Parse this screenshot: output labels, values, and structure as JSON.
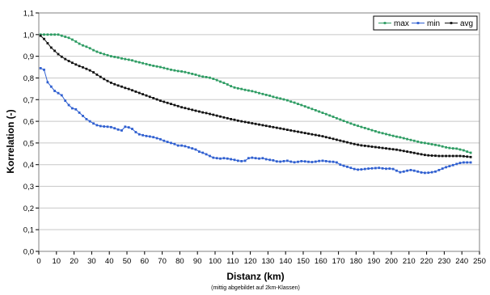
{
  "chart_data": {
    "type": "line",
    "title": "",
    "xlabel": "Distanz (km)",
    "xlabel_note": "(mittig abgebildet auf 2km-Klassen)",
    "ylabel": "Korrelation (-)",
    "xlim": [
      0,
      250
    ],
    "ylim": [
      0,
      1.1
    ],
    "x_ticks": [
      "0",
      "10",
      "20",
      "30",
      "40",
      "50",
      "60",
      "70",
      "80",
      "90",
      "100",
      "110",
      "120",
      "130",
      "140",
      "150",
      "160",
      "170",
      "180",
      "190",
      "200",
      "210",
      "220",
      "230",
      "240",
      "250"
    ],
    "y_ticks": [
      "0,0",
      "0,1",
      "0,2",
      "0,3",
      "0,4",
      "0,5",
      "0,6",
      "0,7",
      "0,8",
      "0,9",
      "1,0",
      "1,1"
    ],
    "grid": "horizontal",
    "legend_position": "top-right",
    "x": [
      1,
      3,
      5,
      7,
      9,
      11,
      13,
      15,
      17,
      19,
      21,
      23,
      25,
      27,
      29,
      31,
      33,
      35,
      37,
      39,
      41,
      43,
      45,
      47,
      49,
      51,
      53,
      55,
      57,
      59,
      61,
      63,
      65,
      67,
      69,
      71,
      73,
      75,
      77,
      79,
      81,
      83,
      85,
      87,
      89,
      91,
      93,
      95,
      97,
      99,
      101,
      103,
      105,
      107,
      109,
      111,
      113,
      115,
      117,
      119,
      121,
      123,
      125,
      127,
      129,
      131,
      133,
      135,
      137,
      139,
      141,
      143,
      145,
      147,
      149,
      151,
      153,
      155,
      157,
      159,
      161,
      163,
      165,
      167,
      169,
      171,
      173,
      175,
      177,
      179,
      181,
      183,
      185,
      187,
      189,
      191,
      193,
      195,
      197,
      199,
      201,
      203,
      205,
      207,
      209,
      211,
      213,
      215,
      217,
      219,
      221,
      223,
      225,
      227,
      229,
      231,
      233,
      235,
      237,
      239,
      241,
      243,
      245
    ],
    "series": [
      {
        "name": "max",
        "color": "#2e9c63",
        "values": [
          1.0,
          1.0,
          1.0,
          1.0,
          1.0,
          1.0,
          0.995,
          0.99,
          0.985,
          0.977,
          0.968,
          0.958,
          0.95,
          0.944,
          0.937,
          0.928,
          0.921,
          0.915,
          0.91,
          0.905,
          0.9,
          0.897,
          0.894,
          0.89,
          0.887,
          0.884,
          0.881,
          0.876,
          0.872,
          0.868,
          0.864,
          0.86,
          0.856,
          0.853,
          0.85,
          0.846,
          0.842,
          0.838,
          0.835,
          0.832,
          0.83,
          0.827,
          0.823,
          0.819,
          0.815,
          0.81,
          0.806,
          0.804,
          0.801,
          0.796,
          0.79,
          0.783,
          0.777,
          0.77,
          0.762,
          0.756,
          0.752,
          0.749,
          0.745,
          0.742,
          0.739,
          0.735,
          0.73,
          0.726,
          0.722,
          0.718,
          0.713,
          0.709,
          0.705,
          0.701,
          0.697,
          0.691,
          0.686,
          0.68,
          0.675,
          0.669,
          0.663,
          0.657,
          0.651,
          0.645,
          0.639,
          0.633,
          0.627,
          0.621,
          0.614,
          0.608,
          0.602,
          0.596,
          0.59,
          0.584,
          0.579,
          0.574,
          0.569,
          0.564,
          0.559,
          0.554,
          0.549,
          0.545,
          0.541,
          0.537,
          0.533,
          0.529,
          0.526,
          0.522,
          0.518,
          0.514,
          0.51,
          0.506,
          0.502,
          0.5,
          0.497,
          0.494,
          0.491,
          0.488,
          0.484,
          0.48,
          0.477,
          0.475,
          0.474,
          0.47,
          0.466,
          0.46,
          0.455
        ]
      },
      {
        "name": "min",
        "color": "#2f5fd0",
        "values": [
          0.845,
          0.838,
          0.78,
          0.76,
          0.74,
          0.73,
          0.72,
          0.695,
          0.675,
          0.66,
          0.655,
          0.64,
          0.625,
          0.61,
          0.6,
          0.59,
          0.582,
          0.578,
          0.576,
          0.575,
          0.573,
          0.568,
          0.562,
          0.558,
          0.575,
          0.572,
          0.565,
          0.55,
          0.54,
          0.536,
          0.532,
          0.53,
          0.527,
          0.522,
          0.517,
          0.51,
          0.505,
          0.5,
          0.495,
          0.488,
          0.488,
          0.485,
          0.48,
          0.475,
          0.47,
          0.46,
          0.455,
          0.448,
          0.44,
          0.432,
          0.43,
          0.428,
          0.43,
          0.428,
          0.425,
          0.422,
          0.418,
          0.416,
          0.418,
          0.43,
          0.432,
          0.43,
          0.428,
          0.43,
          0.425,
          0.422,
          0.42,
          0.415,
          0.414,
          0.416,
          0.418,
          0.414,
          0.411,
          0.413,
          0.416,
          0.415,
          0.413,
          0.412,
          0.414,
          0.417,
          0.418,
          0.416,
          0.414,
          0.413,
          0.41,
          0.4,
          0.395,
          0.39,
          0.385,
          0.38,
          0.377,
          0.378,
          0.38,
          0.382,
          0.383,
          0.384,
          0.385,
          0.383,
          0.381,
          0.382,
          0.38,
          0.372,
          0.365,
          0.368,
          0.372,
          0.375,
          0.372,
          0.368,
          0.364,
          0.362,
          0.363,
          0.365,
          0.368,
          0.375,
          0.382,
          0.388,
          0.393,
          0.398,
          0.403,
          0.408,
          0.41,
          0.41,
          0.41
        ]
      },
      {
        "name": "avg",
        "color": "#111111",
        "values": [
          0.995,
          0.98,
          0.96,
          0.94,
          0.925,
          0.91,
          0.898,
          0.887,
          0.878,
          0.87,
          0.862,
          0.855,
          0.849,
          0.842,
          0.835,
          0.826,
          0.815,
          0.805,
          0.795,
          0.786,
          0.778,
          0.771,
          0.765,
          0.76,
          0.754,
          0.749,
          0.743,
          0.737,
          0.731,
          0.725,
          0.719,
          0.713,
          0.707,
          0.701,
          0.695,
          0.69,
          0.685,
          0.68,
          0.675,
          0.67,
          0.665,
          0.661,
          0.657,
          0.653,
          0.649,
          0.645,
          0.641,
          0.638,
          0.634,
          0.63,
          0.626,
          0.622,
          0.618,
          0.614,
          0.61,
          0.607,
          0.603,
          0.6,
          0.597,
          0.594,
          0.591,
          0.588,
          0.585,
          0.582,
          0.579,
          0.576,
          0.573,
          0.57,
          0.567,
          0.564,
          0.561,
          0.558,
          0.555,
          0.552,
          0.549,
          0.546,
          0.543,
          0.54,
          0.537,
          0.534,
          0.531,
          0.527,
          0.523,
          0.519,
          0.515,
          0.511,
          0.507,
          0.503,
          0.499,
          0.495,
          0.492,
          0.489,
          0.487,
          0.485,
          0.483,
          0.481,
          0.479,
          0.477,
          0.475,
          0.473,
          0.471,
          0.469,
          0.466,
          0.463,
          0.46,
          0.457,
          0.454,
          0.451,
          0.448,
          0.445,
          0.443,
          0.442,
          0.441,
          0.44,
          0.44,
          0.44,
          0.44,
          0.44,
          0.44,
          0.44,
          0.439,
          0.437,
          0.435
        ]
      }
    ]
  }
}
